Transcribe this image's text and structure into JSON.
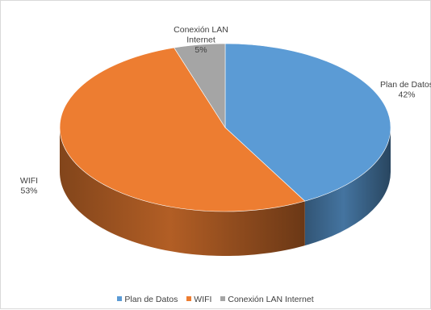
{
  "chart_data": {
    "type": "pie",
    "categories": [
      "Plan de Datos",
      "WIFI",
      "Conexión LAN Internet"
    ],
    "values": [
      42,
      53,
      5
    ],
    "labels": [
      {
        "lines": [
          "Plan de Datos",
          "42%"
        ]
      },
      {
        "lines": [
          "WIFI",
          "53%"
        ]
      },
      {
        "lines": [
          "Conexión LAN",
          "Internet",
          "5%"
        ]
      }
    ],
    "colors": [
      "#5b9bd5",
      "#ed7d31",
      "#a5a5a5"
    ],
    "legend_position": "bottom",
    "style": "3d"
  }
}
